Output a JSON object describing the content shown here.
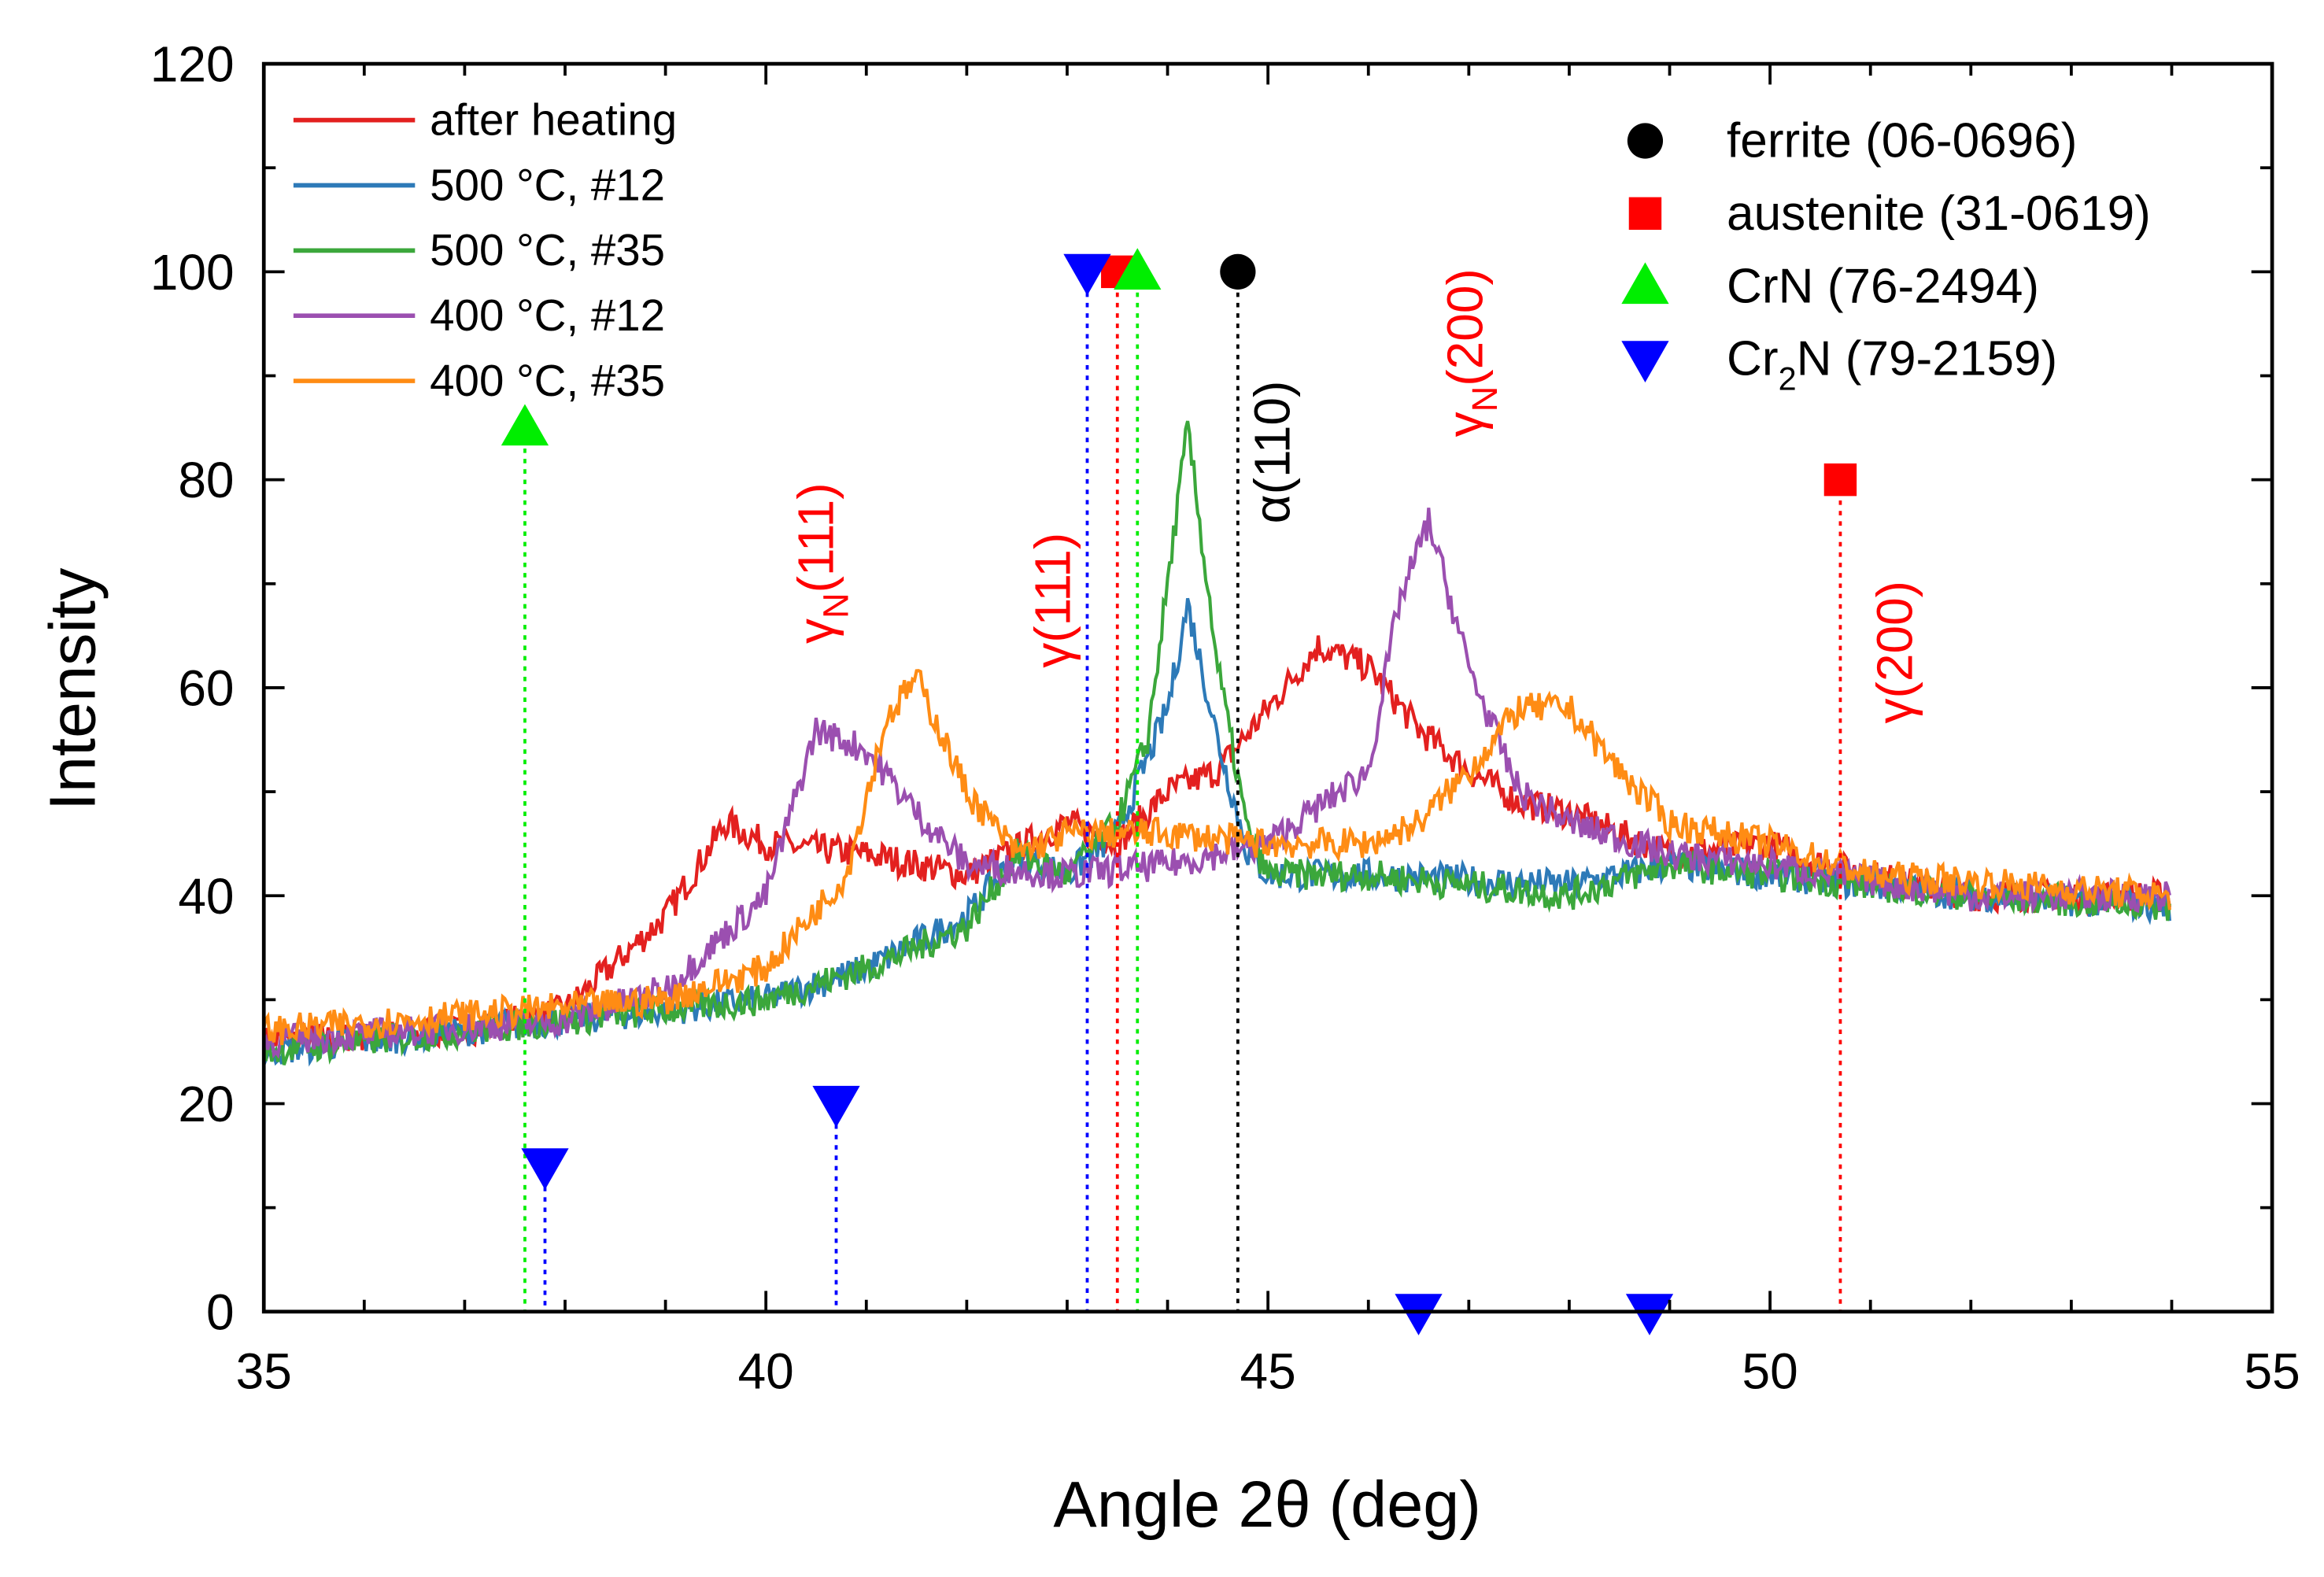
{
  "chart_data": {
    "type": "line",
    "xlabel": "Angle 2θ (deg)",
    "ylabel": "Intensity",
    "xlim": [
      35,
      55
    ],
    "ylim": [
      0,
      120
    ],
    "xticks": [
      "35",
      "40",
      "45",
      "50",
      "55"
    ],
    "yticks": [
      "0",
      "20",
      "40",
      "60",
      "80",
      "100",
      "120"
    ],
    "grid": false,
    "legend_placement": "top-left",
    "series": [
      {
        "name": "after heating",
        "color": "#e3201f",
        "points": [
          [
            35,
            26
          ],
          [
            37,
            27
          ],
          [
            38,
            29
          ],
          [
            39,
            38
          ],
          [
            39.6,
            47
          ],
          [
            40,
            45
          ],
          [
            41,
            44
          ],
          [
            42,
            42
          ],
          [
            43,
            47
          ],
          [
            43.5,
            45
          ],
          [
            44,
            50
          ],
          [
            44.5,
            52
          ],
          [
            45,
            58
          ],
          [
            45.5,
            64
          ],
          [
            46,
            62
          ],
          [
            46.5,
            56
          ],
          [
            47,
            52
          ],
          [
            47.5,
            49
          ],
          [
            48,
            48
          ],
          [
            48.5,
            46
          ],
          [
            49,
            44
          ],
          [
            50,
            45
          ],
          [
            50.5,
            43
          ],
          [
            52,
            40
          ],
          [
            54,
            40
          ]
        ]
      },
      {
        "name": "500 °C, #12",
        "color": "#2d7ab8",
        "points": [
          [
            35,
            25
          ],
          [
            37,
            27
          ],
          [
            39,
            29
          ],
          [
            40,
            30
          ],
          [
            41,
            33
          ],
          [
            42,
            38
          ],
          [
            42.5,
            44
          ],
          [
            43,
            42
          ],
          [
            43.5,
            46
          ],
          [
            44,
            58
          ],
          [
            44.2,
            68
          ],
          [
            44.5,
            55
          ],
          [
            44.8,
            44
          ],
          [
            45,
            42
          ],
          [
            46,
            42
          ],
          [
            48,
            41
          ],
          [
            49,
            43
          ],
          [
            50,
            42
          ],
          [
            52,
            40
          ],
          [
            54,
            39
          ]
        ]
      },
      {
        "name": "500 °C, #35",
        "color": "#3ba73b",
        "points": [
          [
            35,
            25
          ],
          [
            37,
            27
          ],
          [
            39,
            29
          ],
          [
            40,
            30
          ],
          [
            41,
            33
          ],
          [
            42,
            37
          ],
          [
            42.5,
            44
          ],
          [
            43,
            42
          ],
          [
            43.5,
            47
          ],
          [
            43.8,
            55
          ],
          [
            44,
            70
          ],
          [
            44.2,
            85
          ],
          [
            44.5,
            62
          ],
          [
            44.8,
            46
          ],
          [
            45,
            42
          ],
          [
            46,
            42
          ],
          [
            48,
            40
          ],
          [
            49,
            43
          ],
          [
            50,
            42
          ],
          [
            52,
            40
          ],
          [
            54,
            39
          ]
        ]
      },
      {
        "name": "400 °C, #12",
        "color": "#9b4fb0",
        "points": [
          [
            35,
            26
          ],
          [
            38,
            28
          ],
          [
            39,
            31
          ],
          [
            40,
            40
          ],
          [
            40.5,
            56
          ],
          [
            41,
            54
          ],
          [
            41.5,
            48
          ],
          [
            42,
            43
          ],
          [
            43,
            42
          ],
          [
            44,
            43
          ],
          [
            45,
            45
          ],
          [
            46,
            52
          ],
          [
            46.3,
            68
          ],
          [
            46.6,
            76
          ],
          [
            47,
            62
          ],
          [
            47.5,
            50
          ],
          [
            48,
            47
          ],
          [
            49,
            44
          ],
          [
            50,
            43
          ],
          [
            52,
            40
          ],
          [
            54,
            40
          ]
        ]
      },
      {
        "name": "400 °C, #35",
        "color": "#ff8c14",
        "points": [
          [
            35,
            27
          ],
          [
            39,
            30
          ],
          [
            40,
            33
          ],
          [
            40.8,
            42
          ],
          [
            41.2,
            57
          ],
          [
            41.5,
            61
          ],
          [
            42,
            50
          ],
          [
            42.5,
            44
          ],
          [
            43,
            46
          ],
          [
            44,
            46
          ],
          [
            45,
            45
          ],
          [
            46,
            45
          ],
          [
            46.5,
            47
          ],
          [
            47,
            52
          ],
          [
            47.5,
            58
          ],
          [
            48,
            58
          ],
          [
            48.5,
            52
          ],
          [
            49,
            47
          ],
          [
            50,
            45
          ],
          [
            51,
            42
          ],
          [
            54,
            40
          ]
        ]
      }
    ],
    "reference_legend": [
      {
        "label": "ferrite (06-0696)",
        "marker": "circle",
        "color": "#000000"
      },
      {
        "label": "austenite (31-0619)",
        "marker": "square",
        "color": "#ff0000"
      },
      {
        "label": "CrN (76-2494)",
        "marker": "triangle-up",
        "color": "#00ee00"
      },
      {
        "label_main": "Cr",
        "label_sub": "2",
        "label_rest": "N (79-2159)",
        "marker": "triangle-down",
        "color": "#0000ff"
      }
    ],
    "reference_peaks": [
      {
        "phase": "ferrite",
        "x": 44.7,
        "y": 100
      },
      {
        "phase": "austenite",
        "x": 43.5,
        "y": 100
      },
      {
        "phase": "austenite",
        "x": 50.7,
        "y": 80
      },
      {
        "phase": "CrN",
        "x": 37.6,
        "y": 85
      },
      {
        "phase": "CrN",
        "x": 43.7,
        "y": 100
      },
      {
        "phase": "Cr2N",
        "x": 43.2,
        "y": 100
      },
      {
        "phase": "Cr2N",
        "x": 37.8,
        "y": 14
      },
      {
        "phase": "Cr2N",
        "x": 40.7,
        "y": 20
      },
      {
        "phase": "Cr2N",
        "x": 46.5,
        "y": 0
      },
      {
        "phase": "Cr2N",
        "x": 48.8,
        "y": 0
      }
    ],
    "annotations": [
      {
        "main": "γ",
        "sub": "N",
        "rest": "(111)",
        "color": "#ff0000"
      },
      {
        "main": "γ",
        "sub": "",
        "rest": "(111)",
        "color": "#ff0000"
      },
      {
        "main": "α",
        "sub": "",
        "rest": "(110)",
        "color": "#000000"
      },
      {
        "main": "γ",
        "sub": "N",
        "rest": "(200)",
        "color": "#ff0000"
      },
      {
        "main": "γ",
        "sub": "",
        "rest": "(200)",
        "color": "#ff0000"
      }
    ]
  }
}
